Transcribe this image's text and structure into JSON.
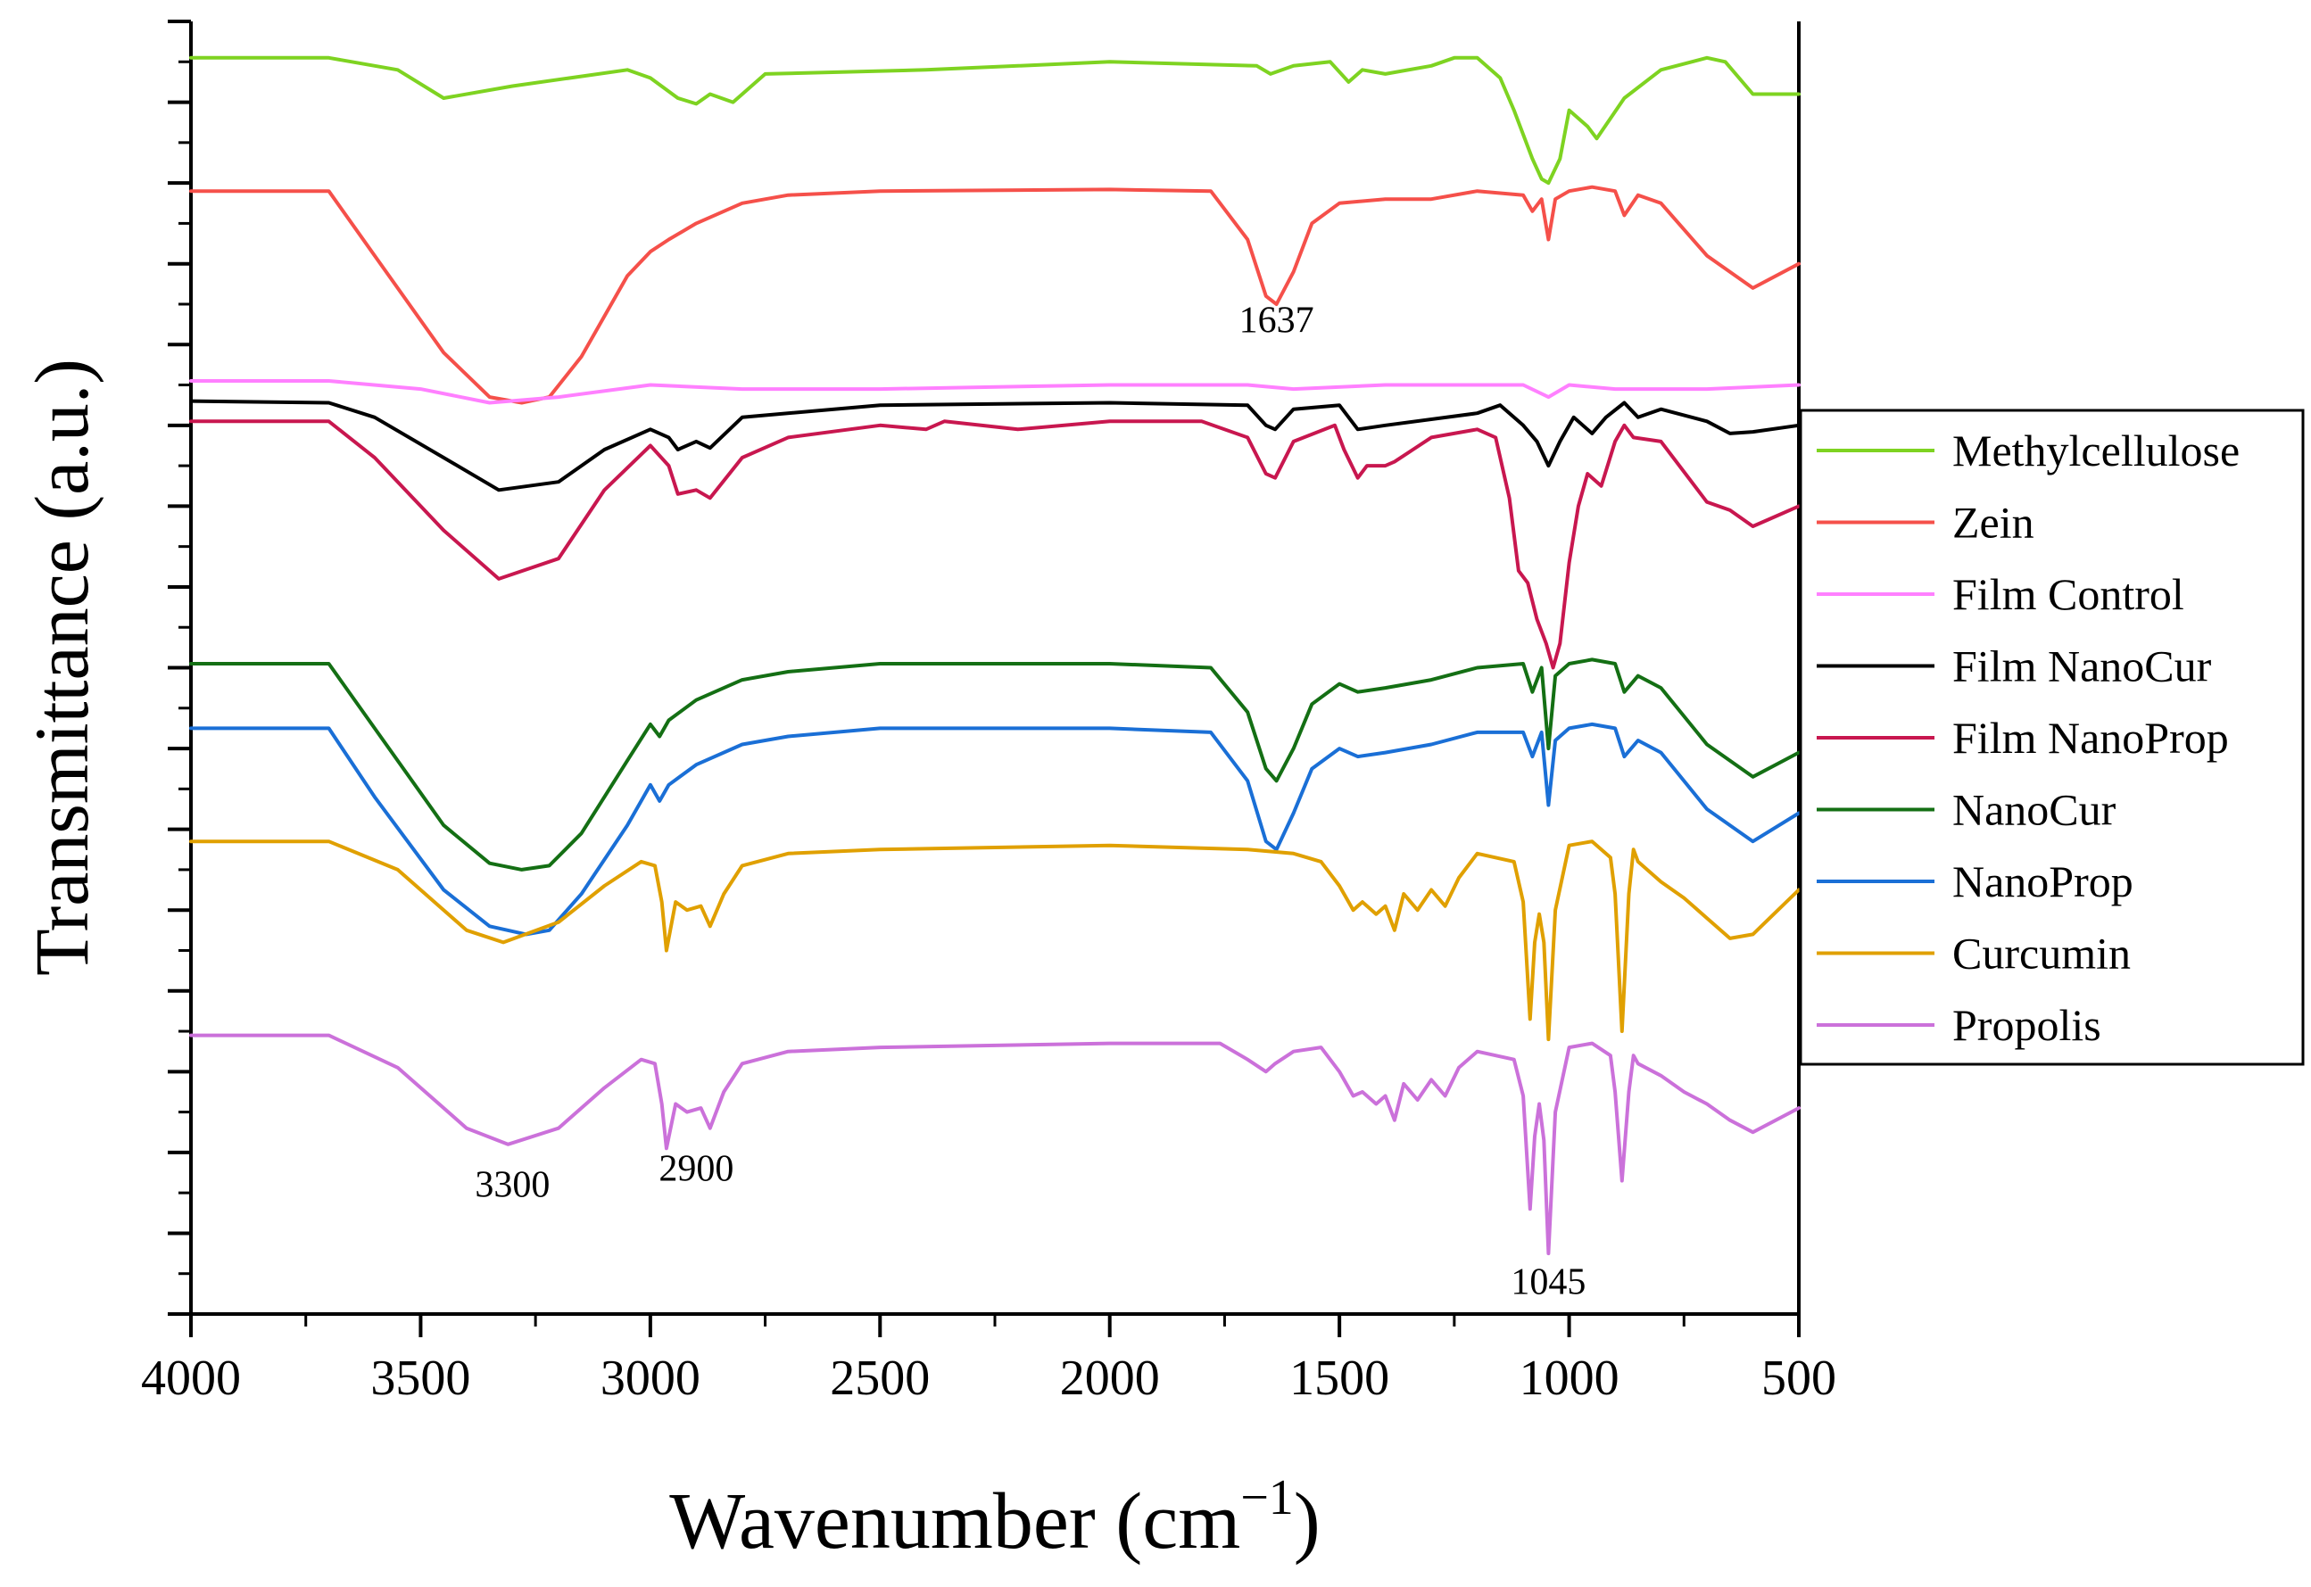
{
  "chart_data": {
    "type": "line",
    "title": "",
    "xlabel": "Wavenumber (cm",
    "xlabel_sup": "−1",
    "xlabel_close": ")",
    "ylabel": "Transmittance (a.u.)",
    "xlim": [
      4000,
      500
    ],
    "x_reversed": true,
    "ylim": [
      0,
      16
    ],
    "y_ticklabels_shown": false,
    "x_ticks": [
      4000,
      3500,
      3000,
      2500,
      2000,
      1500,
      1000,
      500
    ],
    "x_ticklabels": [
      "4000",
      "3500",
      "3000",
      "2500",
      "2000",
      "1500",
      "1000",
      "500"
    ],
    "legend_position": "right",
    "series": [
      {
        "name": "Methylcellulose",
        "color": "#7ED321",
        "x": [
          4000,
          3700,
          3550,
          3450,
          3300,
          3050,
          3000,
          2940,
          2900,
          2870,
          2820,
          2750,
          2400,
          2000,
          1680,
          1650,
          1600,
          1520,
          1480,
          1450,
          1400,
          1300,
          1250,
          1200,
          1150,
          1120,
          1080,
          1060,
          1045,
          1020,
          1000,
          960,
          940,
          880,
          800,
          700,
          660,
          600,
          500
        ],
        "y": [
          15.55,
          15.55,
          15.4,
          15.05,
          15.2,
          15.4,
          15.3,
          15.05,
          14.98,
          15.1,
          15.0,
          15.35,
          15.4,
          15.5,
          15.45,
          15.35,
          15.45,
          15.5,
          15.25,
          15.4,
          15.35,
          15.45,
          15.55,
          15.55,
          15.3,
          14.9,
          14.3,
          14.05,
          14.0,
          14.3,
          14.9,
          14.7,
          14.55,
          15.05,
          15.4,
          15.55,
          15.5,
          15.1,
          15.1
        ]
      },
      {
        "name": "Zein",
        "color": "#F5504A",
        "x": [
          4000,
          3700,
          3600,
          3450,
          3350,
          3280,
          3220,
          3150,
          3050,
          3000,
          2960,
          2900,
          2800,
          2700,
          2500,
          2000,
          1780,
          1700,
          1660,
          1637,
          1600,
          1560,
          1500,
          1400,
          1300,
          1200,
          1100,
          1080,
          1060,
          1045,
          1030,
          1000,
          950,
          900,
          880,
          850,
          800,
          700,
          600,
          500
        ],
        "y": [
          13.9,
          13.9,
          13.1,
          11.9,
          11.35,
          11.28,
          11.35,
          11.85,
          12.85,
          13.15,
          13.3,
          13.5,
          13.75,
          13.85,
          13.9,
          13.92,
          13.9,
          13.3,
          12.6,
          12.5,
          12.9,
          13.5,
          13.75,
          13.8,
          13.8,
          13.9,
          13.85,
          13.65,
          13.8,
          13.3,
          13.8,
          13.9,
          13.95,
          13.9,
          13.6,
          13.85,
          13.75,
          13.1,
          12.7,
          13.0
        ]
      },
      {
        "name": "Film Control",
        "color": "#FF80FF",
        "x": [
          4000,
          3700,
          3500,
          3350,
          3200,
          3000,
          2800,
          2500,
          2000,
          1700,
          1600,
          1400,
          1100,
          1045,
          1000,
          900,
          700,
          500
        ],
        "y": [
          11.55,
          11.55,
          11.45,
          11.28,
          11.35,
          11.5,
          11.45,
          11.45,
          11.5,
          11.5,
          11.45,
          11.5,
          11.5,
          11.35,
          11.5,
          11.45,
          11.45,
          11.5
        ]
      },
      {
        "name": "Film NanoCur",
        "color": "#000000",
        "x": [
          4000,
          3700,
          3600,
          3450,
          3330,
          3200,
          3100,
          3000,
          2960,
          2940,
          2900,
          2870,
          2800,
          2500,
          2000,
          1700,
          1660,
          1640,
          1600,
          1500,
          1460,
          1400,
          1200,
          1150,
          1100,
          1070,
          1045,
          1020,
          990,
          950,
          920,
          880,
          850,
          800,
          700,
          650,
          600,
          500
        ],
        "y": [
          11.3,
          11.28,
          11.1,
          10.6,
          10.2,
          10.3,
          10.7,
          10.95,
          10.85,
          10.7,
          10.8,
          10.72,
          11.1,
          11.25,
          11.28,
          11.25,
          11.0,
          10.95,
          11.2,
          11.25,
          10.95,
          11.0,
          11.15,
          11.25,
          11.0,
          10.8,
          10.5,
          10.8,
          11.1,
          10.9,
          11.1,
          11.28,
          11.1,
          11.2,
          11.05,
          10.9,
          10.92,
          11.0
        ]
      },
      {
        "name": "Film NanoProp",
        "color": "#C8174F",
        "x": [
          4000,
          3700,
          3600,
          3450,
          3330,
          3200,
          3100,
          3000,
          2960,
          2940,
          2900,
          2870,
          2800,
          2700,
          2500,
          2400,
          2360,
          2200,
          2000,
          1800,
          1700,
          1660,
          1640,
          1600,
          1510,
          1490,
          1460,
          1440,
          1400,
          1380,
          1340,
          1300,
          1200,
          1160,
          1130,
          1110,
          1090,
          1070,
          1050,
          1035,
          1020,
          1000,
          980,
          960,
          930,
          900,
          880,
          860,
          800,
          700,
          650,
          600,
          560,
          500
        ],
        "y": [
          11.05,
          11.05,
          10.6,
          9.7,
          9.1,
          9.35,
          10.2,
          10.75,
          10.5,
          10.15,
          10.2,
          10.1,
          10.6,
          10.85,
          11.0,
          10.95,
          11.05,
          10.95,
          11.05,
          11.05,
          10.85,
          10.4,
          10.35,
          10.8,
          11.0,
          10.7,
          10.35,
          10.5,
          10.5,
          10.55,
          10.7,
          10.85,
          10.95,
          10.85,
          10.1,
          9.2,
          9.05,
          8.6,
          8.3,
          8.0,
          8.3,
          9.3,
          10.0,
          10.4,
          10.25,
          10.8,
          11.0,
          10.85,
          10.8,
          10.05,
          9.95,
          9.75,
          9.85,
          10.0
        ]
      },
      {
        "name": "NanoCur",
        "color": "#146F14",
        "x": [
          4000,
          3700,
          3600,
          3450,
          3350,
          3280,
          3220,
          3150,
          3050,
          3000,
          2980,
          2960,
          2900,
          2800,
          2700,
          2500,
          2000,
          1780,
          1700,
          1660,
          1637,
          1600,
          1560,
          1500,
          1460,
          1400,
          1300,
          1200,
          1100,
          1080,
          1060,
          1045,
          1030,
          1000,
          950,
          900,
          880,
          850,
          800,
          700,
          600,
          500
        ],
        "y": [
          8.05,
          8.05,
          7.25,
          6.05,
          5.58,
          5.5,
          5.55,
          5.95,
          6.85,
          7.3,
          7.15,
          7.35,
          7.6,
          7.85,
          7.95,
          8.05,
          8.05,
          8.0,
          7.45,
          6.75,
          6.6,
          7.0,
          7.55,
          7.8,
          7.7,
          7.75,
          7.85,
          8.0,
          8.05,
          7.7,
          8.0,
          7.0,
          7.9,
          8.05,
          8.1,
          8.05,
          7.7,
          7.9,
          7.75,
          7.05,
          6.65,
          6.95
        ]
      },
      {
        "name": "NanoProp",
        "color": "#1A6FD6",
        "x": [
          4000,
          3700,
          3600,
          3450,
          3350,
          3270,
          3220,
          3150,
          3050,
          3000,
          2980,
          2960,
          2900,
          2800,
          2700,
          2500,
          2000,
          1780,
          1700,
          1660,
          1637,
          1600,
          1560,
          1500,
          1460,
          1400,
          1300,
          1200,
          1100,
          1080,
          1060,
          1045,
          1030,
          1000,
          950,
          900,
          880,
          850,
          800,
          700,
          600,
          500
        ],
        "y": [
          7.25,
          7.25,
          6.4,
          5.25,
          4.8,
          4.7,
          4.75,
          5.2,
          6.05,
          6.55,
          6.35,
          6.55,
          6.8,
          7.05,
          7.15,
          7.25,
          7.25,
          7.2,
          6.6,
          5.85,
          5.75,
          6.2,
          6.75,
          7.0,
          6.9,
          6.95,
          7.05,
          7.2,
          7.2,
          6.9,
          7.2,
          6.3,
          7.1,
          7.25,
          7.3,
          7.25,
          6.9,
          7.1,
          6.95,
          6.25,
          5.85,
          6.2
        ]
      },
      {
        "name": "Curcumin",
        "color": "#E0A000",
        "x": [
          4000,
          3700,
          3550,
          3400,
          3320,
          3200,
          3100,
          3020,
          2990,
          2975,
          2965,
          2945,
          2920,
          2890,
          2870,
          2840,
          2800,
          2700,
          2500,
          2000,
          1700,
          1600,
          1540,
          1500,
          1470,
          1450,
          1420,
          1400,
          1380,
          1360,
          1330,
          1300,
          1270,
          1240,
          1200,
          1120,
          1100,
          1085,
          1075,
          1065,
          1055,
          1045,
          1030,
          1000,
          950,
          910,
          900,
          885,
          870,
          860,
          850,
          800,
          750,
          700,
          650,
          600,
          500
        ],
        "y": [
          5.85,
          5.85,
          5.5,
          4.75,
          4.6,
          4.85,
          5.3,
          5.6,
          5.55,
          5.1,
          4.5,
          5.1,
          5.0,
          5.05,
          4.8,
          5.2,
          5.55,
          5.7,
          5.75,
          5.8,
          5.75,
          5.7,
          5.6,
          5.3,
          5.0,
          5.1,
          4.95,
          5.05,
          4.75,
          5.2,
          5.0,
          5.25,
          5.05,
          5.4,
          5.7,
          5.6,
          5.1,
          3.65,
          4.6,
          4.95,
          4.6,
          3.4,
          5.0,
          5.8,
          5.85,
          5.65,
          5.2,
          3.5,
          5.2,
          5.75,
          5.6,
          5.35,
          5.15,
          4.9,
          4.65,
          4.7,
          5.25
        ]
      },
      {
        "name": "Propolis",
        "color": "#CB71DA",
        "x": [
          4000,
          3700,
          3550,
          3400,
          3310,
          3200,
          3100,
          3020,
          2990,
          2975,
          2965,
          2945,
          2920,
          2890,
          2870,
          2840,
          2800,
          2700,
          2500,
          2000,
          1760,
          1700,
          1660,
          1640,
          1600,
          1540,
          1500,
          1470,
          1450,
          1420,
          1400,
          1380,
          1360,
          1330,
          1300,
          1270,
          1240,
          1200,
          1120,
          1100,
          1085,
          1075,
          1065,
          1055,
          1045,
          1030,
          1000,
          950,
          910,
          900,
          885,
          870,
          860,
          850,
          800,
          750,
          700,
          650,
          600,
          500
        ],
        "y": [
          3.45,
          3.45,
          3.05,
          2.3,
          2.1,
          2.3,
          2.8,
          3.15,
          3.1,
          2.6,
          2.05,
          2.6,
          2.5,
          2.55,
          2.3,
          2.75,
          3.1,
          3.25,
          3.3,
          3.35,
          3.35,
          3.15,
          3.0,
          3.1,
          3.25,
          3.3,
          3.0,
          2.7,
          2.75,
          2.6,
          2.7,
          2.4,
          2.85,
          2.65,
          2.9,
          2.7,
          3.05,
          3.25,
          3.15,
          2.7,
          1.3,
          2.2,
          2.6,
          2.15,
          0.75,
          2.5,
          3.3,
          3.35,
          3.2,
          2.75,
          1.65,
          2.75,
          3.2,
          3.1,
          2.95,
          2.75,
          2.6,
          2.4,
          2.25,
          2.55
        ]
      }
    ],
    "annotations": [
      {
        "text": "1637",
        "x": 1637,
        "y": 12.15
      },
      {
        "text": "3300",
        "x": 3300,
        "y": 1.45
      },
      {
        "text": "2900",
        "x": 2900,
        "y": 1.65
      },
      {
        "text": "1045",
        "x": 1045,
        "y": 0.25
      }
    ]
  }
}
